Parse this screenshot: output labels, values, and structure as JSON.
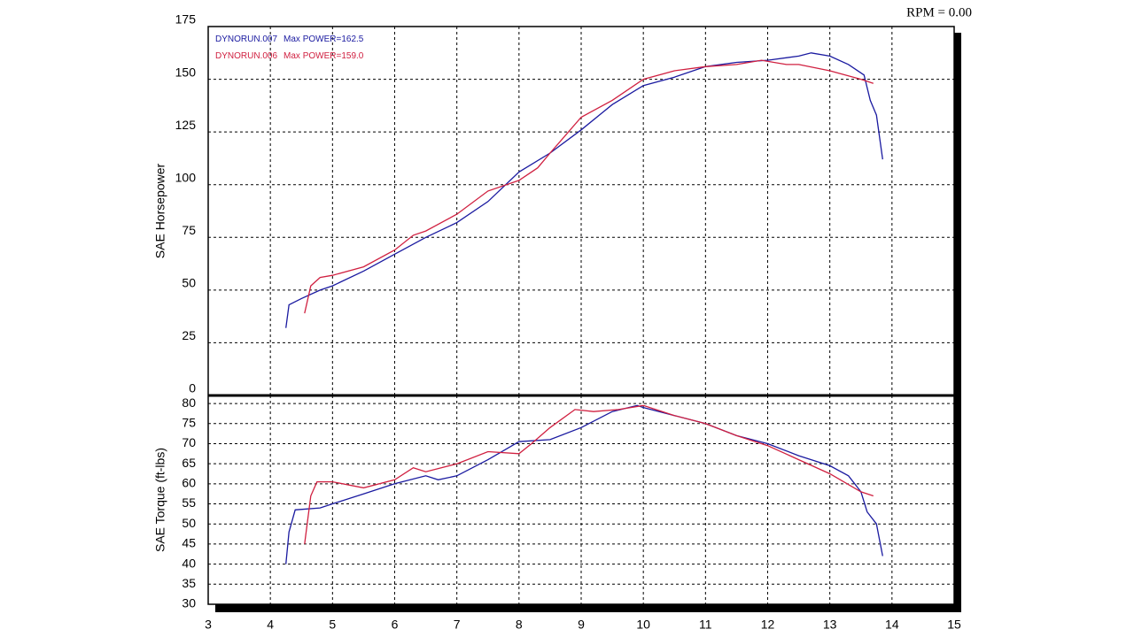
{
  "status": "RPM = 0.00",
  "chart_data": [
    {
      "type": "line",
      "ylabel": "SAE Horsepower",
      "xlim": [
        3,
        15
      ],
      "xticks": [
        3,
        4,
        5,
        6,
        7,
        8,
        9,
        10,
        11,
        12,
        13,
        14,
        15
      ],
      "ylim": [
        0,
        175
      ],
      "yticks": [
        0,
        25,
        50,
        75,
        100,
        125,
        150,
        175
      ],
      "grid": true,
      "series": [
        {
          "name": "DYNORUN.007",
          "legend_text": "Max POWER=162.5",
          "color": "#1a1aa0",
          "x": [
            4.25,
            4.3,
            4.5,
            4.8,
            5,
            5.5,
            6,
            6.5,
            7,
            7.5,
            8,
            8.5,
            9,
            9.5,
            10,
            10.5,
            11,
            11.5,
            12,
            12.5,
            12.7,
            13,
            13.3,
            13.55,
            13.65,
            13.75,
            13.85
          ],
          "values": [
            32,
            43,
            46,
            50,
            52,
            59,
            67,
            75,
            82,
            92,
            106,
            115,
            126,
            138,
            147,
            151,
            156,
            158,
            159,
            161,
            162.5,
            161,
            157,
            152,
            140,
            133,
            112
          ]
        },
        {
          "name": "DYNORUN.006",
          "legend_text": "Max POWER=159.0",
          "color": "#d02040",
          "x": [
            4.55,
            4.65,
            4.8,
            5,
            5.5,
            6,
            6.3,
            6.5,
            7,
            7.5,
            8,
            8.3,
            8.5,
            9,
            9.5,
            10,
            10.5,
            11,
            11.5,
            11.9,
            12.3,
            12.5,
            13,
            13.5,
            13.7
          ],
          "values": [
            39,
            52,
            56,
            57,
            61,
            69,
            76,
            78,
            86,
            97,
            102,
            108,
            115,
            132,
            140,
            150,
            154,
            156,
            157,
            159,
            157,
            157,
            154,
            150,
            148
          ]
        }
      ]
    },
    {
      "type": "line",
      "ylabel": "SAE Torque (ft-lbs)",
      "xlim": [
        3,
        15
      ],
      "xticks": [
        3,
        4,
        5,
        6,
        7,
        8,
        9,
        10,
        11,
        12,
        13,
        14,
        15
      ],
      "ylim": [
        30,
        82
      ],
      "yticks": [
        30,
        35,
        40,
        45,
        50,
        55,
        60,
        65,
        70,
        75,
        80
      ],
      "grid": true,
      "series": [
        {
          "name": "DYNORUN.007",
          "color": "#1a1aa0",
          "x": [
            4.25,
            4.3,
            4.4,
            4.8,
            5,
            5.5,
            6,
            6.5,
            6.7,
            7,
            7.5,
            8,
            8.5,
            9,
            9.5,
            9.9,
            10,
            10.5,
            11,
            11.5,
            12,
            12.5,
            13,
            13.3,
            13.5,
            13.6,
            13.75,
            13.85
          ],
          "values": [
            40,
            48,
            53.5,
            54,
            55,
            57.5,
            60,
            62,
            61,
            62,
            66,
            70.5,
            71,
            74,
            78,
            79.5,
            79,
            77,
            75,
            72,
            70,
            67,
            64.5,
            62,
            58,
            53,
            50,
            42
          ]
        },
        {
          "name": "DYNORUN.006",
          "color": "#d02040",
          "x": [
            4.55,
            4.65,
            4.75,
            5,
            5.5,
            6,
            6.3,
            6.5,
            7,
            7.5,
            8,
            8.2,
            8.5,
            8.9,
            9.2,
            9.6,
            10,
            10.5,
            11,
            11.5,
            12,
            12.5,
            13,
            13.5,
            13.7
          ],
          "values": [
            45,
            57,
            60.5,
            60.5,
            59,
            61,
            64,
            63,
            65,
            68,
            67.5,
            70,
            74,
            78.5,
            78,
            78.5,
            79.5,
            77,
            75,
            72,
            69.5,
            66,
            62.5,
            58,
            57
          ]
        }
      ]
    }
  ]
}
